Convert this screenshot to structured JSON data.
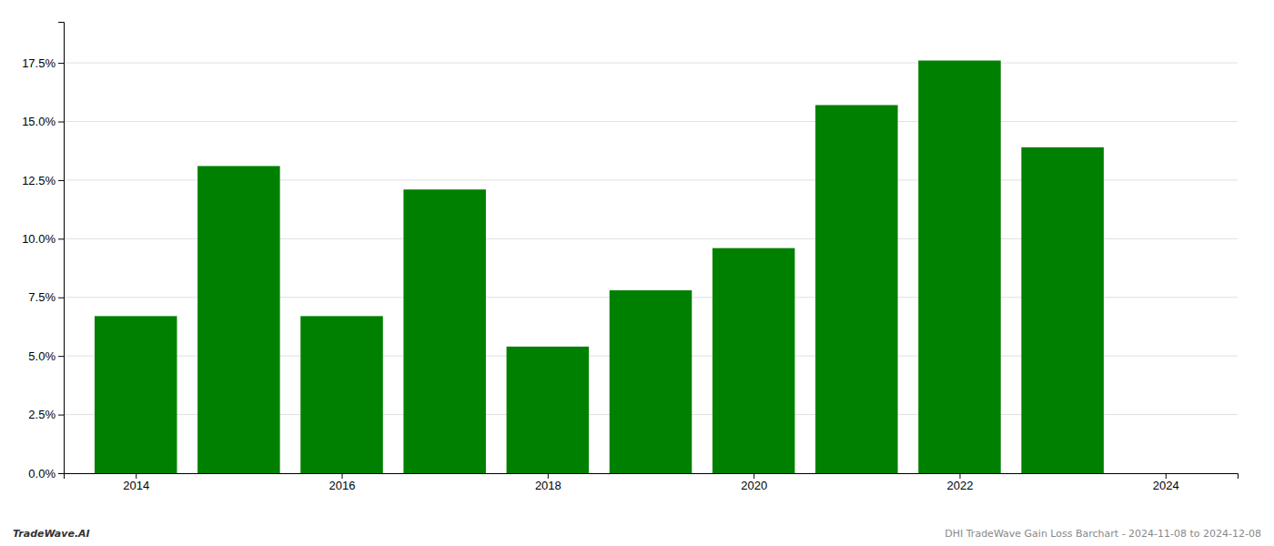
{
  "chart_data": {
    "type": "bar",
    "x": [
      2014,
      2015,
      2016,
      2017,
      2018,
      2019,
      2020,
      2021,
      2022,
      2023
    ],
    "values": [
      0.067,
      0.131,
      0.067,
      0.121,
      0.054,
      0.078,
      0.096,
      0.157,
      0.176,
      0.139
    ],
    "color": "#008000",
    "xlim": [
      2013.3,
      2024.7
    ],
    "xticks": [
      2014,
      2016,
      2018,
      2020,
      2022,
      2024
    ],
    "ylim": [
      0,
      0.1925
    ],
    "yticks": [
      {
        "value": 0.0,
        "label": "0.0%"
      },
      {
        "value": 0.025,
        "label": "2.5%"
      },
      {
        "value": 0.05,
        "label": "5.0%"
      },
      {
        "value": 0.075,
        "label": "7.5%"
      },
      {
        "value": 0.1,
        "label": "10.0%"
      },
      {
        "value": 0.125,
        "label": "12.5%"
      },
      {
        "value": 0.15,
        "label": "15.0%"
      },
      {
        "value": 0.175,
        "label": "17.5%"
      }
    ],
    "grid": true,
    "annotations": [
      "TradeWave.AI",
      "DHI TradeWave Gain Loss Barchart - 2024-11-08 to 2024-12-08"
    ]
  }
}
